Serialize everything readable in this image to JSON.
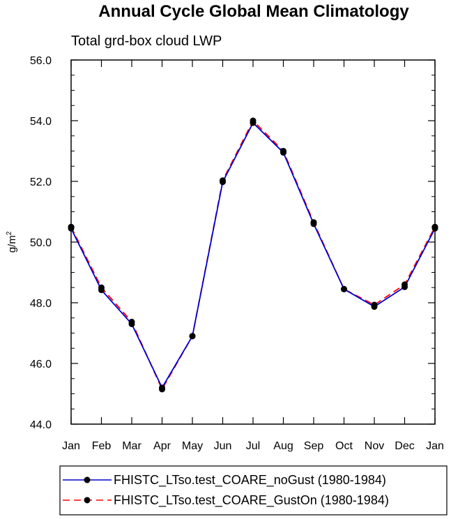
{
  "chart_data": {
    "type": "line",
    "title": "Annual Cycle Global Mean Climatology",
    "subtitle": "Total grd-box cloud LWP",
    "ylabel": "g/m",
    "ylabel_sup": "2",
    "xlabel": "",
    "categories": [
      "Jan",
      "Feb",
      "Mar",
      "Apr",
      "May",
      "Jun",
      "Jul",
      "Aug",
      "Sep",
      "Oct",
      "Nov",
      "Dec",
      "Jan"
    ],
    "ylim": [
      44.0,
      56.0
    ],
    "yticks": [
      "44.0",
      "46.0",
      "48.0",
      "50.0",
      "52.0",
      "54.0",
      "56.0"
    ],
    "grid": false,
    "legend_position": "bottom",
    "series": [
      {
        "name": "FHISTC_LTso.test_COARE_noGust (1980-1984)",
        "color": "#0000cc",
        "dash": "solid",
        "values": [
          50.45,
          48.42,
          47.3,
          45.2,
          46.9,
          51.98,
          53.93,
          52.95,
          50.6,
          48.45,
          47.87,
          48.52,
          50.45
        ]
      },
      {
        "name": "FHISTC_LTso.test_COARE_GustOn (1980-1984)",
        "color": "#ff0000",
        "dash": "dashed",
        "values": [
          50.5,
          48.5,
          47.37,
          45.15,
          46.9,
          52.03,
          54.0,
          53.0,
          50.65,
          48.45,
          47.93,
          48.6,
          50.5
        ]
      }
    ]
  }
}
